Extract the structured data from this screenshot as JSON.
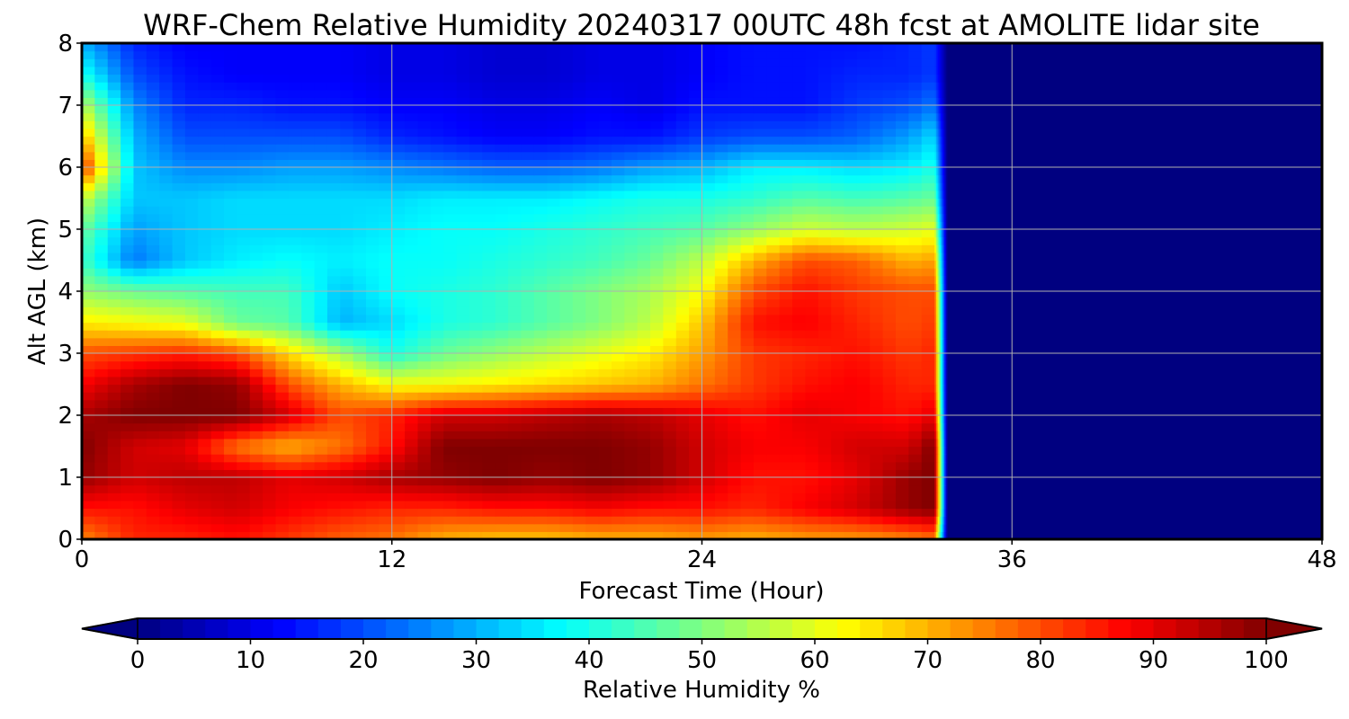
{
  "chart_data": {
    "type": "heatmap",
    "title": "WRF-Chem Relative Humidity 20240317 00UTC 48h fcst at AMOLITE lidar site",
    "xlabel": "Forecast Time (Hour)",
    "ylabel": "Alt AGL (km)",
    "xlim": [
      0,
      48
    ],
    "ylim": [
      0,
      8
    ],
    "x_ticks": [
      0,
      12,
      24,
      36,
      48
    ],
    "y_ticks": [
      0,
      1,
      2,
      3,
      4,
      5,
      6,
      7,
      8
    ],
    "grid": true,
    "z_unit": "%",
    "data_end_hour": 33.5,
    "fill_after_data": 0,
    "x": [
      0,
      2,
      4,
      6,
      8,
      10,
      12,
      14,
      16,
      18,
      20,
      22,
      24,
      26,
      28,
      30,
      32,
      33
    ],
    "y": [
      0,
      0.5,
      1,
      1.5,
      2,
      2.5,
      3,
      3.5,
      4,
      4.5,
      5,
      5.5,
      6,
      6.5,
      7,
      7.5,
      8
    ],
    "z": [
      [
        74,
        84,
        84,
        86,
        82,
        78,
        76,
        70,
        68,
        68,
        70,
        70,
        72,
        70,
        72,
        72,
        74,
        76
      ],
      [
        86,
        86,
        90,
        92,
        88,
        86,
        84,
        84,
        86,
        86,
        88,
        86,
        86,
        84,
        88,
        92,
        98,
        100
      ],
      [
        98,
        92,
        94,
        94,
        90,
        92,
        96,
        98,
        100,
        98,
        100,
        98,
        92,
        86,
        86,
        90,
        98,
        100
      ],
      [
        100,
        92,
        90,
        76,
        70,
        76,
        86,
        100,
        100,
        100,
        100,
        98,
        92,
        88,
        88,
        92,
        92,
        100
      ],
      [
        96,
        100,
        100,
        100,
        92,
        80,
        84,
        92,
        92,
        94,
        96,
        94,
        90,
        86,
        90,
        88,
        86,
        90
      ],
      [
        88,
        96,
        100,
        98,
        80,
        70,
        62,
        62,
        64,
        66,
        68,
        70,
        76,
        82,
        86,
        88,
        84,
        84
      ],
      [
        80,
        82,
        84,
        80,
        66,
        54,
        40,
        48,
        52,
        56,
        60,
        64,
        72,
        82,
        84,
        86,
        82,
        84
      ],
      [
        64,
        62,
        60,
        48,
        46,
        30,
        34,
        40,
        42,
        46,
        50,
        56,
        68,
        86,
        88,
        84,
        80,
        82
      ],
      [
        52,
        48,
        46,
        44,
        44,
        32,
        38,
        40,
        42,
        46,
        50,
        54,
        62,
        80,
        86,
        82,
        80,
        80
      ],
      [
        44,
        24,
        32,
        36,
        38,
        36,
        38,
        38,
        40,
        42,
        44,
        48,
        56,
        70,
        80,
        78,
        70,
        72
      ],
      [
        48,
        28,
        32,
        34,
        34,
        34,
        36,
        38,
        38,
        40,
        42,
        44,
        46,
        52,
        58,
        56,
        58,
        60
      ],
      [
        58,
        32,
        32,
        34,
        34,
        34,
        34,
        36,
        36,
        36,
        38,
        40,
        40,
        42,
        46,
        44,
        46,
        48
      ],
      [
        84,
        32,
        26,
        26,
        28,
        28,
        26,
        24,
        22,
        22,
        24,
        28,
        30,
        36,
        36,
        34,
        36,
        40
      ],
      [
        70,
        30,
        20,
        20,
        20,
        20,
        16,
        14,
        12,
        12,
        14,
        14,
        18,
        20,
        20,
        22,
        28,
        34
      ],
      [
        56,
        26,
        16,
        16,
        14,
        14,
        12,
        12,
        10,
        10,
        12,
        10,
        14,
        14,
        14,
        18,
        20,
        24
      ],
      [
        40,
        20,
        14,
        12,
        12,
        12,
        10,
        10,
        8,
        8,
        10,
        10,
        12,
        14,
        14,
        16,
        16,
        18
      ],
      [
        30,
        16,
        12,
        12,
        12,
        12,
        10,
        10,
        8,
        8,
        10,
        10,
        12,
        14,
        14,
        14,
        16,
        18
      ]
    ],
    "colorbar": {
      "label": "Relative Humidity %",
      "min": 0,
      "max": 100,
      "ticks": [
        "0",
        "10",
        "20",
        "30",
        "40",
        "50",
        "60",
        "70",
        "80",
        "90",
        "100"
      ],
      "extend": "both",
      "colormap": "jet",
      "levels": 50
    }
  }
}
